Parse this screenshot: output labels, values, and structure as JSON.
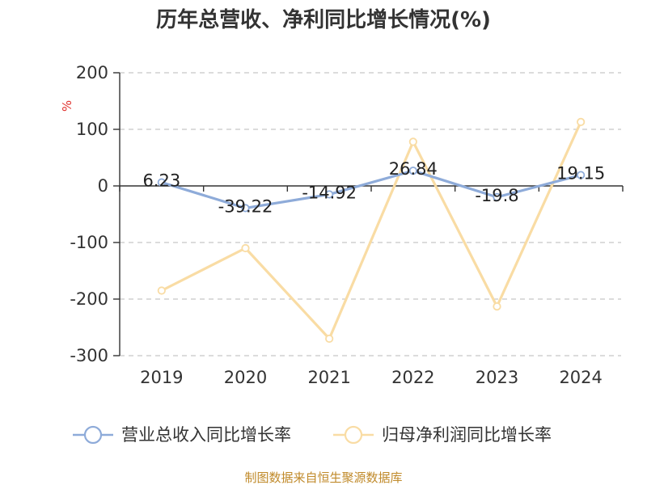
{
  "chart_data": {
    "type": "line",
    "title": "历年总营收、净利同比增长情况(%)",
    "ylabel": "%",
    "categories": [
      "2019",
      "2020",
      "2021",
      "2022",
      "2023",
      "2024"
    ],
    "ylim": [
      -300,
      200
    ],
    "yticks": [
      200,
      100,
      0,
      -100,
      -200,
      -300
    ],
    "grid": true,
    "legend_position": "bottom",
    "series": [
      {
        "name": "营业总收入同比增长率",
        "color": "#8eabd9",
        "values": [
          6.23,
          -39.22,
          -14.92,
          26.84,
          -19.8,
          19.15
        ],
        "labels": [
          "6.23",
          "-39.22",
          "-14.92",
          "26.84",
          "-19.8",
          "19.15"
        ]
      },
      {
        "name": "归母净利润同比增长率",
        "color": "#f9dca4",
        "values": [
          -185,
          -110,
          -270,
          78,
          -213,
          113
        ]
      }
    ]
  },
  "footer": "制图数据来自恒生聚源数据库"
}
